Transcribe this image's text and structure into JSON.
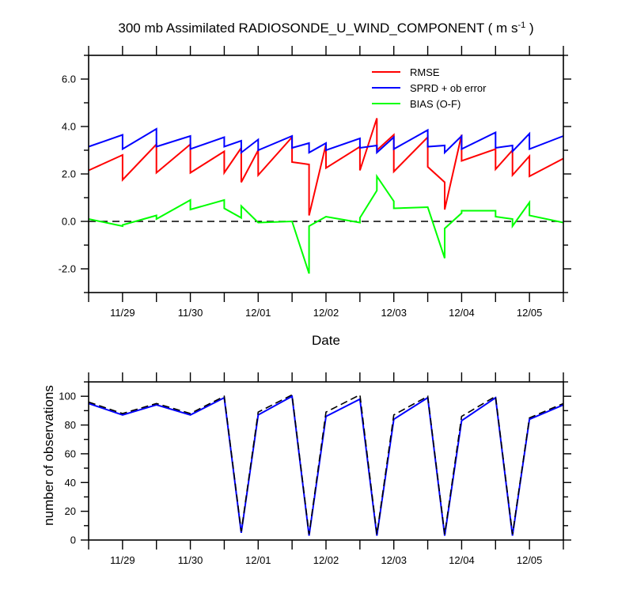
{
  "chart_data": [
    {
      "type": "line",
      "title_main": "300 mb Assimilated RADIOSONDE_U_WIND_COMPONENT ( m s",
      "title_sup": "-1",
      "title_end": " )",
      "xlabel": "Date",
      "ylabel": "",
      "xlim": [
        "11/28 12Z",
        "12/05 12Z"
      ],
      "ylim": [
        -3.0,
        7.0
      ],
      "x_tick_labels": [
        "11/29",
        "11/30",
        "12/01",
        "12/02",
        "12/03",
        "12/04",
        "12/05"
      ],
      "y_tick_labels": [
        "-2.0",
        "0.0",
        "2.0",
        "4.0",
        "6.0"
      ],
      "zero_line": true,
      "legend_position": "top-right",
      "series": [
        {
          "name": "RMSE",
          "color": "#ff0000",
          "points": [
            [
              "11/28 12Z",
              2.15
            ],
            [
              "11/29 00Z",
              2.8
            ],
            [
              "11/29 00Z",
              1.75
            ],
            [
              "11/29 12Z",
              3.25
            ],
            [
              "11/29 12Z",
              2.05
            ],
            [
              "11/30 00Z",
              3.25
            ],
            [
              "11/30 00Z",
              2.05
            ],
            [
              "11/30 12Z",
              2.95
            ],
            [
              "11/30 12Z",
              2.05
            ],
            [
              "11/30 18Z",
              3.1
            ],
            [
              "11/30 18Z",
              1.65
            ],
            [
              "12/01 00Z",
              3.0
            ],
            [
              "12/01 00Z",
              1.95
            ],
            [
              "12/01 12Z",
              3.55
            ],
            [
              "12/01 12Z",
              2.5
            ],
            [
              "12/01 18Z",
              2.4
            ],
            [
              "12/01 18Z",
              0.25
            ],
            [
              "12/02 00Z",
              3.25
            ],
            [
              "12/02 00Z",
              2.25
            ],
            [
              "12/02 12Z",
              3.15
            ],
            [
              "12/02 12Z",
              2.15
            ],
            [
              "12/02 18Z",
              4.35
            ],
            [
              "12/02 18Z",
              3.0
            ],
            [
              "12/03 00Z",
              3.65
            ],
            [
              "12/03 00Z",
              2.1
            ],
            [
              "12/03 12Z",
              3.55
            ],
            [
              "12/03 12Z",
              2.3
            ],
            [
              "12/03 18Z",
              1.65
            ],
            [
              "12/03 18Z",
              0.5
            ],
            [
              "12/04 00Z",
              3.65
            ],
            [
              "12/04 00Z",
              2.55
            ],
            [
              "12/04 12Z",
              3.05
            ],
            [
              "12/04 12Z",
              2.2
            ],
            [
              "12/04 18Z",
              3.0
            ],
            [
              "12/04 18Z",
              1.95
            ],
            [
              "12/05 00Z",
              2.75
            ],
            [
              "12/05 00Z",
              1.9
            ],
            [
              "12/05 12Z",
              2.65
            ]
          ]
        },
        {
          "name": "SPRD + ob error",
          "color": "#0000ff",
          "points": [
            [
              "11/28 12Z",
              3.15
            ],
            [
              "11/29 00Z",
              3.65
            ],
            [
              "11/29 00Z",
              3.05
            ],
            [
              "11/29 12Z",
              3.9
            ],
            [
              "11/29 12Z",
              3.15
            ],
            [
              "11/30 00Z",
              3.6
            ],
            [
              "11/30 00Z",
              3.05
            ],
            [
              "11/30 12Z",
              3.55
            ],
            [
              "11/30 12Z",
              3.15
            ],
            [
              "11/30 18Z",
              3.4
            ],
            [
              "11/30 18Z",
              2.9
            ],
            [
              "12/01 00Z",
              3.45
            ],
            [
              "12/01 00Z",
              3.0
            ],
            [
              "12/01 12Z",
              3.6
            ],
            [
              "12/01 12Z",
              3.1
            ],
            [
              "12/01 18Z",
              3.3
            ],
            [
              "12/01 18Z",
              2.9
            ],
            [
              "12/02 00Z",
              3.3
            ],
            [
              "12/02 00Z",
              3.0
            ],
            [
              "12/02 12Z",
              3.5
            ],
            [
              "12/02 12Z",
              3.1
            ],
            [
              "12/02 18Z",
              3.2
            ],
            [
              "12/02 18Z",
              2.9
            ],
            [
              "12/03 00Z",
              3.55
            ],
            [
              "12/03 00Z",
              3.05
            ],
            [
              "12/03 12Z",
              3.85
            ],
            [
              "12/03 12Z",
              3.15
            ],
            [
              "12/03 18Z",
              3.2
            ],
            [
              "12/03 18Z",
              2.9
            ],
            [
              "12/04 00Z",
              3.6
            ],
            [
              "12/04 00Z",
              3.05
            ],
            [
              "12/04 12Z",
              3.75
            ],
            [
              "12/04 12Z",
              3.1
            ],
            [
              "12/04 18Z",
              3.2
            ],
            [
              "12/04 18Z",
              2.95
            ],
            [
              "12/05 00Z",
              3.7
            ],
            [
              "12/05 00Z",
              3.05
            ],
            [
              "12/05 12Z",
              3.6
            ]
          ]
        },
        {
          "name": "BIAS (O-F)",
          "color": "#00ff00",
          "points": [
            [
              "11/28 12Z",
              0.1
            ],
            [
              "11/29 00Z",
              -0.2
            ],
            [
              "11/29 00Z",
              -0.15
            ],
            [
              "11/29 12Z",
              0.25
            ],
            [
              "11/29 12Z",
              0.1
            ],
            [
              "11/30 00Z",
              0.9
            ],
            [
              "11/30 00Z",
              0.5
            ],
            [
              "11/30 12Z",
              0.9
            ],
            [
              "11/30 12Z",
              0.55
            ],
            [
              "11/30 18Z",
              0.15
            ],
            [
              "11/30 18Z",
              0.65
            ],
            [
              "12/01 00Z",
              -0.05
            ],
            [
              "12/01 12Z",
              0.0
            ],
            [
              "12/01 18Z",
              -2.2
            ],
            [
              "12/01 18Z",
              -0.2
            ],
            [
              "12/02 00Z",
              0.2
            ],
            [
              "12/02 12Z",
              -0.05
            ],
            [
              "12/02 12Z",
              0.15
            ],
            [
              "12/02 18Z",
              1.3
            ],
            [
              "12/02 18Z",
              1.9
            ],
            [
              "12/03 00Z",
              0.85
            ],
            [
              "12/03 00Z",
              0.55
            ],
            [
              "12/03 12Z",
              0.6
            ],
            [
              "12/03 18Z",
              -1.55
            ],
            [
              "12/03 18Z",
              -0.3
            ],
            [
              "12/04 00Z",
              0.35
            ],
            [
              "12/04 00Z",
              0.45
            ],
            [
              "12/04 12Z",
              0.45
            ],
            [
              "12/04 12Z",
              0.2
            ],
            [
              "12/04 18Z",
              0.1
            ],
            [
              "12/04 18Z",
              -0.2
            ],
            [
              "12/05 00Z",
              0.8
            ],
            [
              "12/05 00Z",
              0.25
            ],
            [
              "12/05 12Z",
              -0.05
            ]
          ]
        }
      ]
    },
    {
      "type": "line",
      "xlabel": "",
      "ylabel": "number of observations",
      "xlim": [
        "11/28 12Z",
        "12/05 12Z"
      ],
      "ylim": [
        0,
        110
      ],
      "x_tick_labels": [
        "11/29",
        "11/30",
        "12/01",
        "12/02",
        "12/03",
        "12/04",
        "12/05"
      ],
      "y_tick_labels": [
        "0",
        "20",
        "40",
        "60",
        "80",
        "100"
      ],
      "series": [
        {
          "style": "solid",
          "color": "#0000ff",
          "points": [
            [
              "11/28 12Z",
              95
            ],
            [
              "11/29 00Z",
              87
            ],
            [
              "11/29 12Z",
              94
            ],
            [
              "11/30 00Z",
              87
            ],
            [
              "11/30 12Z",
              99
            ],
            [
              "11/30 18Z",
              5
            ],
            [
              "12/01 00Z",
              87
            ],
            [
              "12/01 12Z",
              100
            ],
            [
              "12/01 18Z",
              3
            ],
            [
              "12/02 00Z",
              86
            ],
            [
              "12/02 12Z",
              98
            ],
            [
              "12/02 18Z",
              3
            ],
            [
              "12/03 00Z",
              84
            ],
            [
              "12/03 12Z",
              99
            ],
            [
              "12/03 18Z",
              3
            ],
            [
              "12/04 00Z",
              83
            ],
            [
              "12/04 12Z",
              99
            ],
            [
              "12/04 18Z",
              3
            ],
            [
              "12/05 00Z",
              84
            ],
            [
              "12/05 12Z",
              94
            ]
          ]
        },
        {
          "style": "dashed",
          "color": "#000000",
          "points": [
            [
              "11/28 12Z",
              96
            ],
            [
              "11/29 00Z",
              88
            ],
            [
              "11/29 12Z",
              95
            ],
            [
              "11/30 00Z",
              88
            ],
            [
              "11/30 12Z",
              100
            ],
            [
              "11/30 18Z",
              6
            ],
            [
              "12/01 00Z",
              89
            ],
            [
              "12/01 12Z",
              101
            ],
            [
              "12/01 18Z",
              4
            ],
            [
              "12/02 00Z",
              89
            ],
            [
              "12/02 12Z",
              101
            ],
            [
              "12/02 18Z",
              4
            ],
            [
              "12/03 00Z",
              87
            ],
            [
              "12/03 12Z",
              100
            ],
            [
              "12/03 18Z",
              4
            ],
            [
              "12/04 00Z",
              86
            ],
            [
              "12/04 12Z",
              100
            ],
            [
              "12/04 18Z",
              4
            ],
            [
              "12/05 00Z",
              85
            ],
            [
              "12/05 12Z",
              95
            ]
          ]
        }
      ]
    }
  ]
}
